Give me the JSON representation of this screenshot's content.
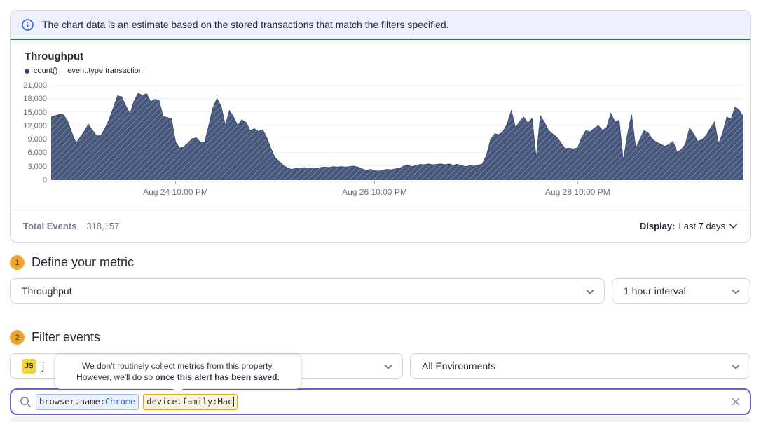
{
  "banner": {
    "text": "The chart data is an estimate based on the stored transactions that match the filters specified."
  },
  "chart": {
    "title": "Throughput",
    "legend_aggregate": "count()",
    "legend_query": "event.type:transaction"
  },
  "chart_data": {
    "type": "area",
    "title": "Throughput",
    "series": [
      {
        "name": "count() event.type:transaction",
        "values": [
          14000,
          14300,
          14600,
          14500,
          13000,
          10500,
          8200,
          9500,
          10800,
          12400,
          11000,
          9800,
          9900,
          11500,
          13500,
          16000,
          18700,
          18500,
          16500,
          14700,
          17500,
          19300,
          18800,
          19200,
          17400,
          17900,
          17800,
          14100,
          13900,
          13600,
          8500,
          7100,
          7400,
          8200,
          9200,
          9400,
          8400,
          8300,
          12000,
          16000,
          18100,
          16400,
          12100,
          15400,
          14000,
          12100,
          13400,
          12800,
          11000,
          11400,
          10800,
          11200,
          9500,
          7000,
          5000,
          4200,
          3300,
          2700,
          2400,
          2600,
          2500,
          2800,
          2500,
          2700,
          2600,
          2800,
          2900,
          2800,
          3000,
          2900,
          3000,
          2900,
          3000,
          3100,
          2900,
          2500,
          2200,
          2400,
          2100,
          2000,
          2200,
          2400,
          2300,
          2500,
          2600,
          3100,
          3300,
          3000,
          3200,
          3500,
          3400,
          3600,
          3400,
          3500,
          3600,
          3400,
          3600,
          3300,
          3500,
          3200,
          3000,
          3200,
          3100,
          3300,
          3600,
          5500,
          9000,
          10300,
          10100,
          10800,
          12500,
          15400,
          11600,
          13000,
          14000,
          12600,
          13700,
          4800,
          14300,
          12800,
          11000,
          10200,
          9500,
          8200,
          7000,
          7100,
          6900,
          7200,
          9500,
          11000,
          10700,
          11500,
          12100,
          11000,
          11700,
          14800,
          12900,
          13300,
          4200,
          10000,
          14550,
          7000,
          9000,
          11000,
          10500,
          9100,
          8400,
          8000,
          7500,
          7900,
          8600,
          6100,
          6800,
          8000,
          11550,
          10200,
          8600,
          9000,
          9900,
          11500,
          12900,
          8000,
          10500,
          14000,
          13500,
          16300,
          15500,
          14000
        ]
      }
    ],
    "ylim": [
      0,
      21000
    ],
    "y_tick_labels": [
      "0",
      "3,000",
      "6,000",
      "9,000",
      "12,000",
      "15,000",
      "18,000",
      "21,000"
    ],
    "x_ticks": [
      {
        "label": "Aug 24 10:00 PM",
        "index": 30
      },
      {
        "label": "Aug 26 10:00 PM",
        "index": 78
      },
      {
        "label": "Aug 28 10:00 PM",
        "index": 127
      }
    ],
    "grid": true,
    "legend_position": "top-left",
    "fill_color": "#46567C",
    "hatch_color": "#8E9AAE",
    "line_color": "#3E4E74"
  },
  "summary": {
    "total_events_label": "Total Events",
    "total_events_value": "318,157",
    "display_label": "Display:",
    "display_value": "Last 7 days"
  },
  "sections": {
    "metric": {
      "number": "1",
      "title": "Define your metric",
      "metric_select_value": "Throughput",
      "interval_select_value": "1 hour interval"
    },
    "filter": {
      "number": "2",
      "title": "Filter events",
      "project_badge": "JS",
      "project_visible_text": "j",
      "environment_select_value": "All Environments"
    }
  },
  "tooltip": {
    "line1": "We don't routinely collect metrics from this property.",
    "line2_prefix": "However, we'll do so ",
    "line2_bold": "once this alert has been saved."
  },
  "search": {
    "tokens": {
      "0": {
        "key": "browser.name:",
        "value": "Chrome"
      },
      "1": {
        "key": "device.family:",
        "value": "Mac"
      }
    }
  },
  "colors": {
    "accent_purple": "#6E5FC6",
    "info_blue": "#2862D0",
    "step_badge_orange": "#EBA732",
    "token_blue_border": "#9FB9E6",
    "token_yellow_border": "#E1A614"
  }
}
